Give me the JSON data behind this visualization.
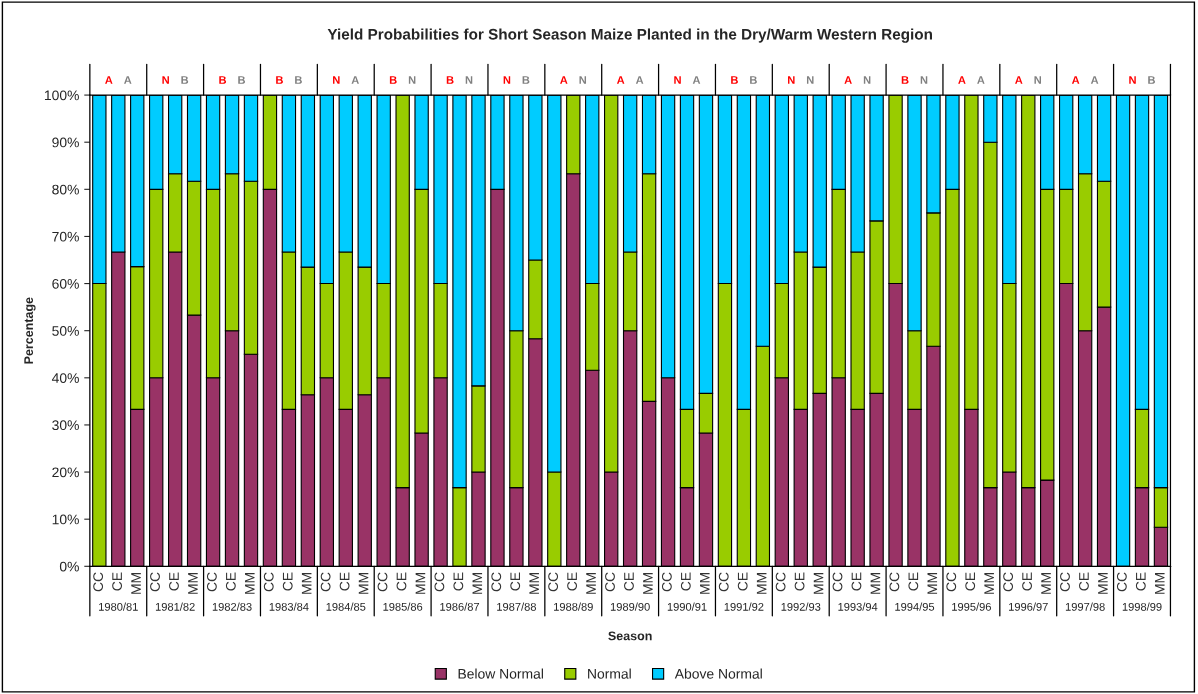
{
  "chart_data": {
    "type": "bar",
    "stacked": true,
    "title": "Yield Probabilities for Short Season Maize Planted in the Dry/Warm Western Region",
    "xlabel": "Season",
    "ylabel": "Percentage",
    "categories": [
      "CC",
      "CE",
      "MM",
      "CC",
      "CE",
      "MM",
      "CC",
      "CE",
      "MM",
      "CC",
      "CE",
      "MM",
      "CC",
      "CE",
      "MM",
      "CC",
      "CE",
      "MM",
      "CC",
      "CE",
      "MM",
      "CC",
      "CE",
      "MM",
      "CC",
      "CE",
      "MM",
      "CC",
      "CE",
      "MM",
      "CC",
      "CE",
      "MM",
      "CC",
      "CE",
      "MM",
      "CC",
      "CE",
      "MM",
      "CC",
      "CE",
      "MM",
      "CC",
      "CE",
      "MM",
      "CC",
      "CE",
      "MM",
      "CC",
      "CE",
      "MM",
      "CC",
      "CE",
      "MM",
      "CC",
      "CE",
      "MM"
    ],
    "series": [
      {
        "name": "Below Normal",
        "color": "#993366",
        "values": [
          0,
          66.7,
          33.3,
          40,
          66.7,
          53.3,
          40,
          50,
          45,
          80,
          33.3,
          36.4,
          40,
          33.3,
          36.4,
          40,
          16.7,
          28.3,
          40,
          0,
          20,
          80,
          16.7,
          48.3,
          0,
          83.3,
          41.6,
          20,
          50,
          35,
          40,
          16.7,
          28.3,
          0,
          0,
          0,
          40,
          33.3,
          36.7,
          40,
          33.3,
          36.7,
          60,
          33.3,
          46.7,
          0,
          33.3,
          16.7,
          20,
          16.7,
          18.3,
          60,
          50,
          55,
          0,
          16.7,
          8.3
        ]
      },
      {
        "name": "Normal",
        "color": "#99cc00",
        "values": [
          60,
          0,
          30.3,
          40,
          16.6,
          28.4,
          40,
          33.3,
          36.7,
          20,
          33.4,
          27.1,
          20,
          33.4,
          27.1,
          20,
          83.3,
          51.7,
          20,
          16.7,
          18.3,
          0,
          33.3,
          16.7,
          20,
          16.7,
          18.4,
          80,
          16.7,
          48.3,
          0,
          16.6,
          8.4,
          60,
          33.3,
          46.7,
          20,
          33.4,
          26.8,
          40,
          33.4,
          36.6,
          40,
          16.7,
          28.3,
          80,
          66.7,
          73.3,
          40,
          83.3,
          61.7,
          20,
          33.3,
          26.7,
          0,
          16.6,
          8.4
        ]
      },
      {
        "name": "Above Normal",
        "color": "#00ccff",
        "values": [
          40,
          33.3,
          36.4,
          20,
          16.7,
          18.3,
          20,
          16.7,
          18.3,
          0,
          33.3,
          36.5,
          40,
          33.3,
          36.5,
          40,
          0,
          20,
          40,
          83.3,
          61.7,
          20,
          50,
          35,
          80,
          0,
          40,
          0,
          33.3,
          16.7,
          60,
          66.7,
          63.3,
          40,
          66.7,
          53.3,
          40,
          33.3,
          36.5,
          20,
          33.3,
          26.7,
          0,
          50,
          25,
          20,
          0,
          10,
          40,
          0,
          20,
          20,
          16.7,
          18.3,
          100,
          66.7,
          83.3
        ]
      }
    ],
    "ylim": [
      0,
      100
    ],
    "yticks": [
      {
        "value": 0,
        "label": "0%"
      },
      {
        "value": 10,
        "label": "10%"
      },
      {
        "value": 20,
        "label": "20%"
      },
      {
        "value": 30,
        "label": "30%"
      },
      {
        "value": 40,
        "label": "40%"
      },
      {
        "value": 50,
        "label": "50%"
      },
      {
        "value": 60,
        "label": "60%"
      },
      {
        "value": 70,
        "label": "70%"
      },
      {
        "value": 80,
        "label": "80%"
      },
      {
        "value": 90,
        "label": "90%"
      },
      {
        "value": 100,
        "label": "100%"
      }
    ],
    "grid": false,
    "legend": "bottom",
    "annotations": [
      "1980/81",
      "1981/82",
      "1982/83",
      "1983/84",
      "1984/85",
      "1985/86",
      "1986/87",
      "1987/88",
      "1988/89",
      "1989/90",
      "1990/91",
      "1991/92",
      "1992/93",
      "1993/94",
      "1994/95",
      "1995/96",
      "1996/97",
      "1997/98",
      "1998/99",
      "A",
      "A",
      "N",
      "B",
      "B",
      "B",
      "B",
      "B",
      "N",
      "A",
      "B",
      "N",
      "B",
      "N",
      "N",
      "B",
      "A",
      "N",
      "A",
      "A",
      "N",
      "A",
      "B",
      "B",
      "N",
      "N",
      "A",
      "N",
      "B",
      "N",
      "A",
      "A",
      "A",
      "N",
      "A",
      "A",
      "N",
      "B"
    ]
  }
}
